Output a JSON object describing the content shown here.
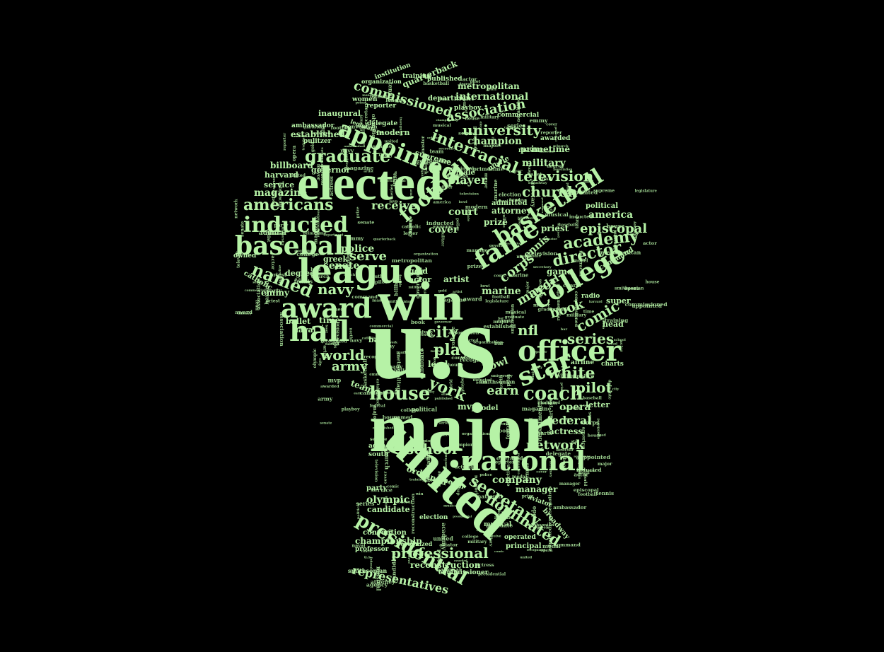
{
  "colors": {
    "background": "#000000",
    "text": "#b6f2a6"
  },
  "words": [
    {
      "id": "us",
      "text": "u.s"
    },
    {
      "id": "win",
      "text": "win"
    },
    {
      "id": "major",
      "text": "major"
    },
    {
      "id": "united",
      "text": "united"
    },
    {
      "id": "elected",
      "text": "elected"
    },
    {
      "id": "league",
      "text": "league"
    },
    {
      "id": "award",
      "text": "award"
    },
    {
      "id": "hall",
      "text": "hall"
    },
    {
      "id": "baseball",
      "text": "baseball"
    },
    {
      "id": "officer",
      "text": "officer"
    },
    {
      "id": "national",
      "text": "national"
    },
    {
      "id": "fame",
      "text": "fame"
    },
    {
      "id": "college",
      "text": "college"
    },
    {
      "id": "appointed",
      "text": "appointed"
    },
    {
      "id": "inducted",
      "text": "inducted"
    },
    {
      "id": "basketball",
      "text": "basketball"
    },
    {
      "id": "football",
      "text": "football"
    },
    {
      "id": "americans",
      "text": "americans"
    },
    {
      "id": "graduate",
      "text": "graduate"
    },
    {
      "id": "named",
      "text": "named"
    },
    {
      "id": "star",
      "text": "star"
    },
    {
      "id": "coach",
      "text": "coach"
    },
    {
      "id": "house",
      "text": "house"
    },
    {
      "id": "presidential",
      "text": "presidential"
    },
    {
      "id": "secretary",
      "text": "secretary"
    },
    {
      "id": "nominated",
      "text": "nominated"
    },
    {
      "id": "professional",
      "text": "professional"
    },
    {
      "id": "representatives",
      "text": "representatives"
    },
    {
      "id": "director",
      "text": "director"
    },
    {
      "id": "academy",
      "text": "academy"
    },
    {
      "id": "comic",
      "text": "comic"
    },
    {
      "id": "series",
      "text": "series"
    },
    {
      "id": "white",
      "text": "white"
    },
    {
      "id": "pilot",
      "text": "pilot"
    },
    {
      "id": "opera",
      "text": "opera"
    },
    {
      "id": "network",
      "text": "network"
    },
    {
      "id": "school",
      "text": "school"
    },
    {
      "id": "company",
      "text": "company"
    },
    {
      "id": "federal",
      "text": "federal"
    },
    {
      "id": "television",
      "text": "television"
    },
    {
      "id": "church",
      "text": "church"
    },
    {
      "id": "university",
      "text": "university"
    },
    {
      "id": "interracial",
      "text": "interracial"
    },
    {
      "id": "association",
      "text": "association"
    },
    {
      "id": "commissioned",
      "text": "commissioned"
    },
    {
      "id": "international",
      "text": "international"
    },
    {
      "id": "champion",
      "text": "champion"
    },
    {
      "id": "military",
      "text": "military"
    },
    {
      "id": "primetime",
      "text": "primetime"
    },
    {
      "id": "episcopal",
      "text": "episcopal"
    },
    {
      "id": "america",
      "text": "america"
    },
    {
      "id": "political",
      "text": "political"
    },
    {
      "id": "mayor",
      "text": "mayor"
    },
    {
      "id": "city",
      "text": "city"
    },
    {
      "id": "play",
      "text": "play"
    },
    {
      "id": "york",
      "text": "york"
    },
    {
      "id": "earn",
      "text": "earn"
    },
    {
      "id": "world",
      "text": "world"
    },
    {
      "id": "army",
      "text": "army"
    },
    {
      "id": "navy",
      "text": "navy"
    },
    {
      "id": "nfl",
      "text": "nfl"
    },
    {
      "id": "player",
      "text": "player"
    },
    {
      "id": "receive",
      "text": "receive"
    },
    {
      "id": "serve",
      "text": "serve"
    },
    {
      "id": "corps",
      "text": "corps"
    },
    {
      "id": "cover",
      "text": "cover"
    },
    {
      "id": "court",
      "text": "court"
    },
    {
      "id": "magazine",
      "text": "magazine"
    },
    {
      "id": "billboard",
      "text": "billboard"
    },
    {
      "id": "established",
      "text": "established"
    },
    {
      "id": "championship",
      "text": "championship"
    },
    {
      "id": "reconstruction",
      "text": "reconstruction"
    },
    {
      "id": "olympic",
      "text": "olympic"
    },
    {
      "id": "manager",
      "text": "manager"
    },
    {
      "id": "senate",
      "text": "senate"
    },
    {
      "id": "police",
      "text": "police"
    },
    {
      "id": "marine",
      "text": "marine"
    },
    {
      "id": "book",
      "text": "book"
    },
    {
      "id": "director_small",
      "text": "game"
    },
    {
      "id": "medal",
      "text": "medal"
    },
    {
      "id": "priest",
      "text": "priest"
    },
    {
      "id": "tennis",
      "text": "tennis"
    },
    {
      "id": "attorney",
      "text": "attorney"
    },
    {
      "id": "prize",
      "text": "prize"
    },
    {
      "id": "harvard",
      "text": "harvard"
    },
    {
      "id": "service",
      "text": "service"
    },
    {
      "id": "governor",
      "text": "governor"
    },
    {
      "id": "emmy",
      "text": "emmy"
    },
    {
      "id": "greek",
      "text": "greek"
    },
    {
      "id": "degree",
      "text": "degree"
    },
    {
      "id": "inaugural",
      "text": "inaugural"
    },
    {
      "id": "ambassador",
      "text": "ambassador"
    },
    {
      "id": "modern",
      "text": "modern"
    },
    {
      "id": "metropolitan",
      "text": "metropolitan"
    },
    {
      "id": "quarterback",
      "text": "quarterback"
    },
    {
      "id": "institution",
      "text": "institution"
    },
    {
      "id": "organization",
      "text": "organization"
    },
    {
      "id": "department",
      "text": "department"
    },
    {
      "id": "commercial",
      "text": "commercial"
    },
    {
      "id": "awarded",
      "text": "awarded"
    },
    {
      "id": "bowl",
      "text": "bowl"
    },
    {
      "id": "artist",
      "text": "artist"
    },
    {
      "id": "time",
      "text": "time"
    },
    {
      "id": "bar",
      "text": "bar"
    },
    {
      "id": "lead",
      "text": "lead"
    },
    {
      "id": "team",
      "text": "team"
    },
    {
      "id": "gold",
      "text": "gold"
    },
    {
      "id": "actor",
      "text": "actor"
    },
    {
      "id": "ordained",
      "text": "ordained"
    },
    {
      "id": "north",
      "text": "north"
    },
    {
      "id": "candidate",
      "text": "candidate"
    },
    {
      "id": "election",
      "text": "election"
    },
    {
      "id": "convention",
      "text": "convention"
    },
    {
      "id": "professor",
      "text": "professor"
    },
    {
      "id": "commissioner",
      "text": "commissioner"
    },
    {
      "id": "principal",
      "text": "principal"
    },
    {
      "id": "operated",
      "text": "operated"
    },
    {
      "id": "actress",
      "text": "actress"
    },
    {
      "id": "broadway",
      "text": "broadway"
    },
    {
      "id": "party",
      "text": "party"
    },
    {
      "id": "smithsonian",
      "text": "smithsonian"
    },
    {
      "id": "supreme",
      "text": "supreme"
    },
    {
      "id": "female",
      "text": "female"
    },
    {
      "id": "movie",
      "text": "movie"
    },
    {
      "id": "admitted",
      "text": "admitted"
    },
    {
      "id": "master",
      "text": "master"
    },
    {
      "id": "ballet",
      "text": "ballet"
    },
    {
      "id": "naval",
      "text": "naval"
    },
    {
      "id": "catholic",
      "text": "catholic"
    },
    {
      "id": "admiral",
      "text": "admiral"
    },
    {
      "id": "super",
      "text": "super"
    },
    {
      "id": "head",
      "text": "head"
    },
    {
      "id": "radio",
      "text": "radio"
    },
    {
      "id": "command",
      "text": "command"
    },
    {
      "id": "letter",
      "text": "letter"
    },
    {
      "id": "charts",
      "text": "charts"
    },
    {
      "id": "airline",
      "text": "airline"
    },
    {
      "id": "delegate",
      "text": "delegate"
    },
    {
      "id": "legislature",
      "text": "legislature"
    },
    {
      "id": "playboy",
      "text": "playboy"
    },
    {
      "id": "women",
      "text": "women"
    },
    {
      "id": "reporter",
      "text": "reporter"
    },
    {
      "id": "published",
      "text": "published"
    },
    {
      "id": "training",
      "text": "training"
    },
    {
      "id": "pulitzer",
      "text": "pulitzer"
    },
    {
      "id": "mvp",
      "text": "mvp"
    },
    {
      "id": "model",
      "text": "model"
    },
    {
      "id": "aviator",
      "text": "aviator"
    },
    {
      "id": "musical",
      "text": "musical"
    },
    {
      "id": "recognized",
      "text": "recognized"
    },
    {
      "id": "agency",
      "text": "agency"
    },
    {
      "id": "south",
      "text": "south"
    },
    {
      "id": "owned",
      "text": "owned"
    }
  ]
}
